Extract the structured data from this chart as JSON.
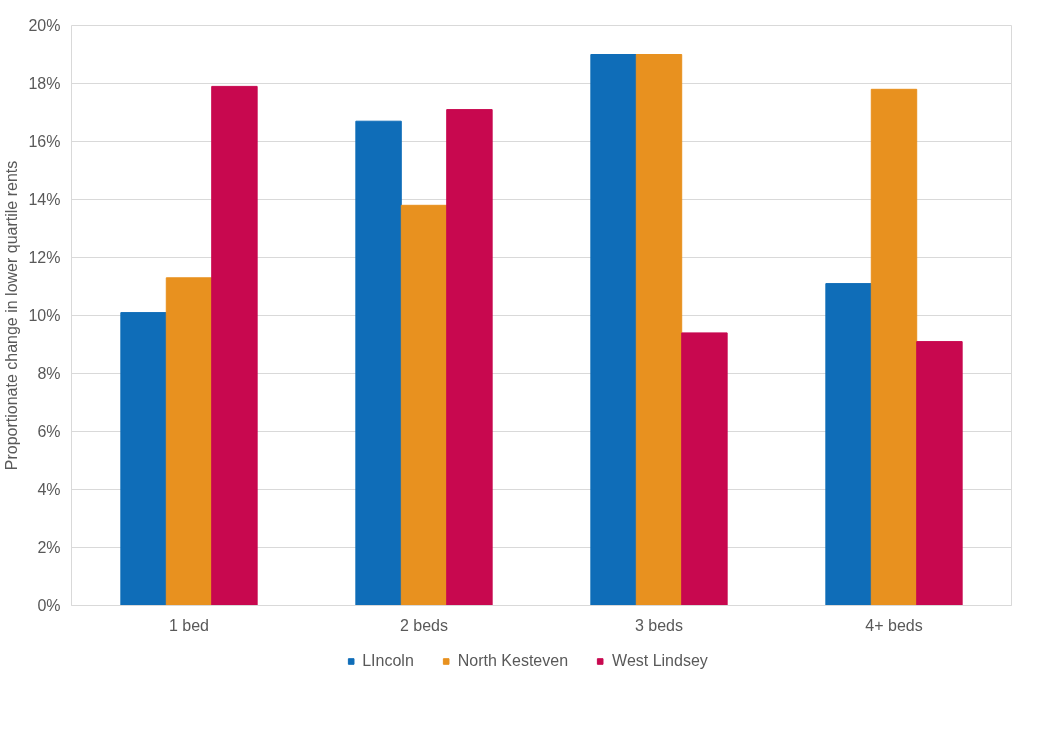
{
  "chart_data": {
    "type": "bar",
    "ylabel": "Proportionate change in lower quartile rents",
    "categories": [
      "1 bed",
      "2 beds",
      "3 beds",
      "4+ beds"
    ],
    "series": [
      {
        "name": "LIncoln",
        "color": "#0f6db8",
        "values": [
          10.1,
          16.7,
          19.0,
          11.1
        ]
      },
      {
        "name": "North Kesteven",
        "color": "#e8911f",
        "values": [
          11.3,
          13.8,
          19.0,
          17.8
        ]
      },
      {
        "name": "West Lindsey",
        "color": "#c8084f",
        "values": [
          17.9,
          17.1,
          9.4,
          9.1
        ]
      }
    ],
    "ylim": [
      0,
      20
    ],
    "yticks": [
      {
        "value": 0,
        "label": "0%"
      },
      {
        "value": 2,
        "label": "2%"
      },
      {
        "value": 4,
        "label": "4%"
      },
      {
        "value": 6,
        "label": "6%"
      },
      {
        "value": 8,
        "label": "8%"
      },
      {
        "value": 10,
        "label": "10%"
      },
      {
        "value": 12,
        "label": "12%"
      },
      {
        "value": 14,
        "label": "14%"
      },
      {
        "value": 16,
        "label": "16%"
      },
      {
        "value": 18,
        "label": "18%"
      },
      {
        "value": 20,
        "label": "20%"
      }
    ],
    "grid": "y",
    "legend": "bottom"
  }
}
